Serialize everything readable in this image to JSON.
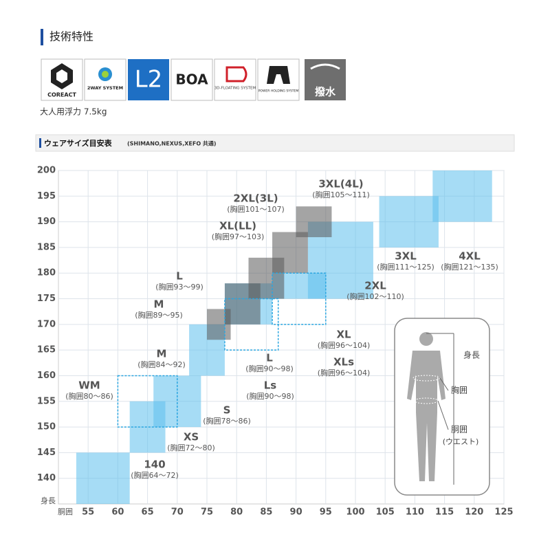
{
  "header": {
    "title": "技術特性"
  },
  "icons": [
    "COREACT",
    "2WAY SYSTEM",
    "L2",
    "BOA",
    "3D-FLOATING SYSTEM",
    "POWER HOLDING SYSTEM",
    "撥水"
  ],
  "buoyancy": "大人用浮力 7.5kg",
  "size_chart": {
    "title": "ウェアサイズ目安表",
    "subtitle": "(SHIMANO,NEXUS,XEFO 共通)",
    "x_label": "胴囲",
    "y_label": "身長",
    "xlim": [
      50,
      125
    ],
    "ylim": [
      135,
      200
    ],
    "xticks": [
      55,
      60,
      65,
      70,
      75,
      80,
      85,
      90,
      95,
      100,
      105,
      110,
      115,
      120,
      125
    ],
    "yticks": [
      140,
      145,
      150,
      155,
      160,
      165,
      170,
      175,
      180,
      185,
      190,
      195,
      200
    ],
    "grid": true,
    "sizes": [
      {
        "name": "140",
        "chest": "(胸囲64～72)",
        "waist": [
          53,
          62
        ],
        "height": [
          135,
          145
        ],
        "style": "filled"
      },
      {
        "name": "XS",
        "chest": "(胸囲72～80)",
        "waist": [
          62,
          68
        ],
        "height": [
          145,
          155
        ],
        "style": "filled"
      },
      {
        "name": "S",
        "chest": "(胸囲78～86)",
        "waist": [
          66,
          74
        ],
        "height": [
          150,
          160
        ],
        "style": "filled"
      },
      {
        "name": "WM",
        "chest": "(胸囲80～86)",
        "waist": [
          60,
          70
        ],
        "height": [
          150,
          160
        ],
        "style": "dashed"
      },
      {
        "name": "M",
        "chest": "(胸囲84～92)",
        "waist": [
          72,
          78
        ],
        "height": [
          160,
          170
        ],
        "style": "filled"
      },
      {
        "name": "M",
        "chest": "(胸囲89～95)",
        "waist": [
          75,
          79
        ],
        "height": [
          167,
          173
        ],
        "style": "gray"
      },
      {
        "name": "L",
        "chest": "(胸囲90～98)",
        "waist": [
          78,
          87
        ],
        "height": [
          165,
          175
        ],
        "style": "dashed"
      },
      {
        "name": "Ls",
        "chest": "(胸囲90～98)",
        "waist": [
          78,
          86
        ],
        "height": [
          170,
          178
        ],
        "style": "filled"
      },
      {
        "name": "L",
        "chest": "(胸囲93～99)",
        "waist": [
          78,
          84
        ],
        "height": [
          170,
          178
        ],
        "style": "gray"
      },
      {
        "name": "XL(LL)",
        "chest": "(胸囲97～103)",
        "waist": [
          82,
          88
        ],
        "height": [
          175,
          183
        ],
        "style": "gray"
      },
      {
        "name": "2XL(3L)",
        "chest": "(胸囲101～107)",
        "waist": [
          86,
          92
        ],
        "height": [
          180,
          188
        ],
        "style": "gray"
      },
      {
        "name": "3XL(4L)",
        "chest": "(胸囲105～111)",
        "waist": [
          90,
          96
        ],
        "height": [
          187,
          193
        ],
        "style": "gray"
      },
      {
        "name": "XL",
        "chest": "(胸囲96～104)",
        "waist": [
          86,
          95
        ],
        "height": [
          170,
          180
        ],
        "style": "dashed"
      },
      {
        "name": "XLs",
        "chest": "(胸囲96～104)",
        "waist": [
          86,
          95
        ],
        "height": [
          175,
          180
        ],
        "style": "filled"
      },
      {
        "name": "2XL",
        "chest": "(胸囲102～110)",
        "waist": [
          92,
          103
        ],
        "height": [
          175,
          190
        ],
        "style": "filled"
      },
      {
        "name": "3XL",
        "chest": "(胸囲111～125)",
        "waist": [
          104,
          114
        ],
        "height": [
          185,
          195
        ],
        "style": "filled"
      },
      {
        "name": "4XL",
        "chest": "(胸囲121～135)",
        "waist": [
          113,
          123
        ],
        "height": [
          190,
          200
        ],
        "style": "filled"
      }
    ],
    "figure_labels": [
      "身長",
      "胸囲",
      "胴囲",
      "(ウエスト)"
    ]
  }
}
